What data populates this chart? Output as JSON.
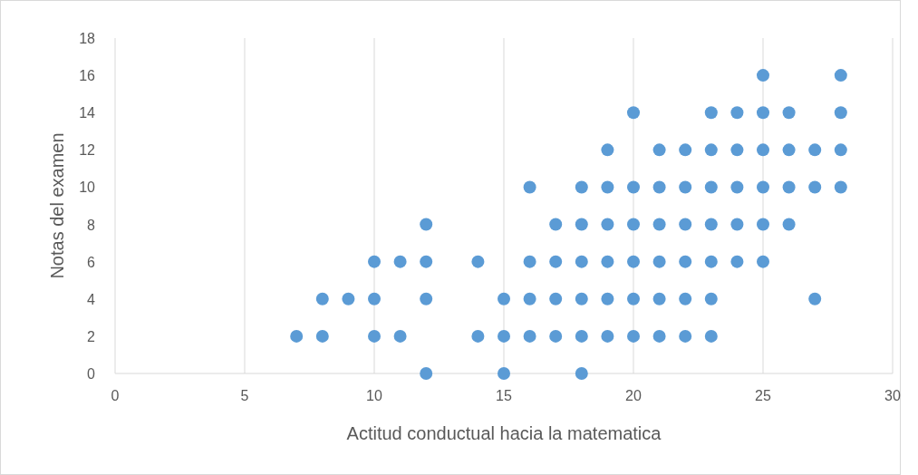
{
  "chart_data": {
    "type": "scatter",
    "xlabel": "Actitud conductual hacia la matematica",
    "ylabel": "Notas del examen",
    "series": [
      {
        "color": "#5b9bd5",
        "x": [
          7,
          8,
          8,
          9,
          10,
          10,
          10,
          11,
          11,
          12,
          12,
          12,
          12,
          14,
          14,
          15,
          15,
          15,
          16,
          16,
          16,
          16,
          17,
          17,
          17,
          17,
          18,
          18,
          18,
          18,
          18,
          18,
          19,
          19,
          19,
          19,
          19,
          19,
          20,
          20,
          20,
          20,
          20,
          20,
          21,
          21,
          21,
          21,
          21,
          21,
          22,
          22,
          22,
          22,
          22,
          22,
          23,
          23,
          23,
          23,
          23,
          23,
          23,
          24,
          24,
          24,
          24,
          24,
          25,
          25,
          25,
          25,
          25,
          25,
          26,
          26,
          26,
          26,
          27,
          27,
          27,
          28,
          28,
          28,
          28
        ],
        "values": [
          2,
          4,
          2,
          4,
          6,
          4,
          2,
          6,
          2,
          8,
          6,
          4,
          0,
          6,
          2,
          4,
          2,
          0,
          10,
          6,
          4,
          2,
          8,
          6,
          4,
          2,
          10,
          8,
          6,
          4,
          2,
          0,
          12,
          10,
          8,
          6,
          4,
          2,
          14,
          10,
          8,
          6,
          4,
          2,
          12,
          10,
          8,
          6,
          4,
          2,
          12,
          10,
          8,
          6,
          4,
          2,
          14,
          12,
          10,
          8,
          6,
          4,
          2,
          14,
          12,
          10,
          8,
          6,
          16,
          14,
          12,
          10,
          8,
          6,
          14,
          12,
          10,
          8,
          12,
          10,
          4,
          16,
          14,
          12,
          10
        ]
      }
    ],
    "xlim": [
      0,
      30
    ],
    "xticks": [
      0,
      5,
      10,
      15,
      20,
      25,
      30
    ],
    "ylim": [
      0,
      18
    ],
    "yticks": [
      0,
      2,
      4,
      6,
      8,
      10,
      12,
      14,
      16,
      18
    ],
    "grid": "x",
    "marker": "circle"
  }
}
